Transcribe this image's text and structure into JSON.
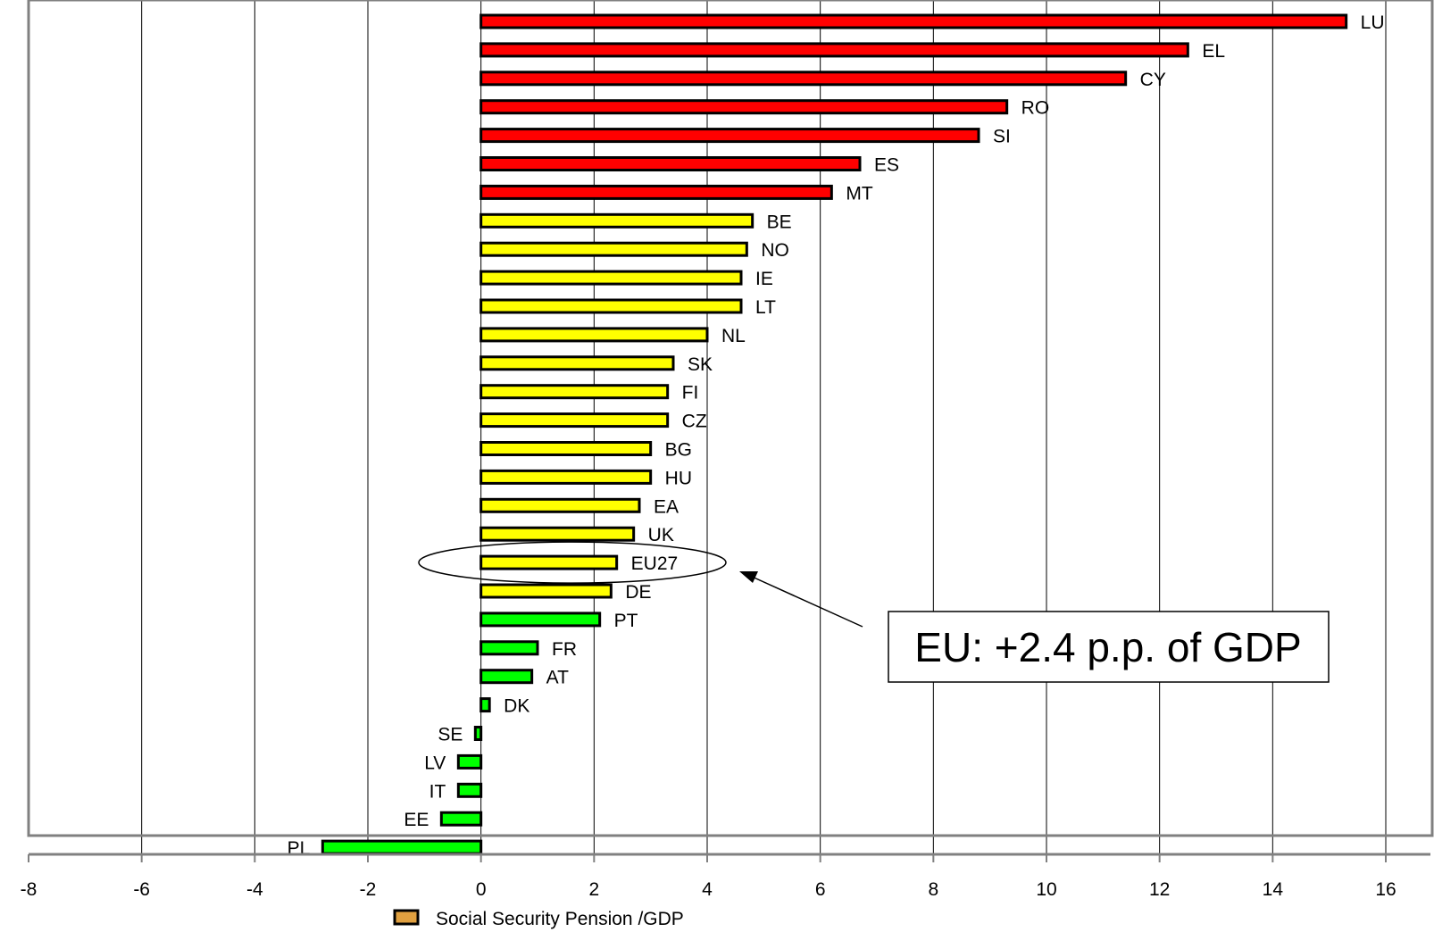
{
  "chart_data": {
    "type": "bar",
    "orientation": "horizontal",
    "categories": [
      "LU",
      "EL",
      "CY",
      "RO",
      "SI",
      "ES",
      "MT",
      "BE",
      "NO",
      "IE",
      "LT",
      "NL",
      "SK",
      "FI",
      "CZ",
      "BG",
      "HU",
      "EA",
      "UK",
      "EU27",
      "DE",
      "PT",
      "FR",
      "AT",
      "DK",
      "SE",
      "LV",
      "IT",
      "EE",
      "PL"
    ],
    "series": [
      {
        "name": "Social Security Pension /GDP",
        "values": [
          15.3,
          12.5,
          11.4,
          9.3,
          8.8,
          6.7,
          6.2,
          4.8,
          4.7,
          4.6,
          4.6,
          4.0,
          3.4,
          3.3,
          3.3,
          3.0,
          3.0,
          2.8,
          2.7,
          2.4,
          2.3,
          2.1,
          1.0,
          0.9,
          0.15,
          -0.1,
          -0.4,
          -0.4,
          -0.7,
          -2.8
        ]
      }
    ],
    "bar_colors": [
      "#ff0000",
      "#ff0000",
      "#ff0000",
      "#ff0000",
      "#ff0000",
      "#ff0000",
      "#ff0000",
      "#ffff00",
      "#ffff00",
      "#ffff00",
      "#ffff00",
      "#ffff00",
      "#ffff00",
      "#ffff00",
      "#ffff00",
      "#ffff00",
      "#ffff00",
      "#ffff00",
      "#ffff00",
      "#ffff00",
      "#ffff00",
      "#00ff00",
      "#00ff00",
      "#00ff00",
      "#00ff00",
      "#00ff00",
      "#00ff00",
      "#00ff00",
      "#00ff00",
      "#00ff00"
    ],
    "xlim": [
      -8,
      16
    ],
    "xticks": [
      "-8",
      "-6",
      "-4",
      "-2",
      "0",
      "2",
      "4",
      "6",
      "8",
      "10",
      "12",
      "14",
      "16"
    ],
    "grid": "vertical",
    "legend": {
      "position": "bottom",
      "label": "Social Security Pension /GDP"
    },
    "highlight": "EU27",
    "annotation": {
      "text": "EU: +2.4 p.p. of GDP"
    }
  }
}
